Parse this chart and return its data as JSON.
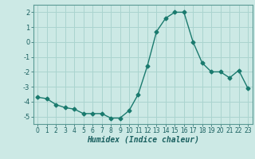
{
  "x": [
    0,
    1,
    2,
    3,
    4,
    5,
    6,
    7,
    8,
    9,
    10,
    11,
    12,
    13,
    14,
    15,
    16,
    17,
    18,
    19,
    20,
    21,
    22,
    23
  ],
  "y": [
    -3.7,
    -3.8,
    -4.2,
    -4.4,
    -4.5,
    -4.8,
    -4.8,
    -4.8,
    -5.1,
    -5.1,
    -4.6,
    -3.5,
    -1.6,
    0.7,
    1.6,
    2.0,
    2.0,
    0.0,
    -1.4,
    -2.0,
    -2.0,
    -2.4,
    -1.9,
    -3.1
  ],
  "xlim": [
    -0.5,
    23.5
  ],
  "ylim": [
    -5.5,
    2.5
  ],
  "yticks": [
    -5,
    -4,
    -3,
    -2,
    -1,
    0,
    1,
    2
  ],
  "xticks": [
    0,
    1,
    2,
    3,
    4,
    5,
    6,
    7,
    8,
    9,
    10,
    11,
    12,
    13,
    14,
    15,
    16,
    17,
    18,
    19,
    20,
    21,
    22,
    23
  ],
  "xlabel": "Humidex (Indice chaleur)",
  "line_color": "#1a7a6e",
  "marker": "D",
  "marker_size": 2.5,
  "bg_color": "#cce9e5",
  "grid_color": "#aad4cf",
  "tick_color": "#1a6060"
}
